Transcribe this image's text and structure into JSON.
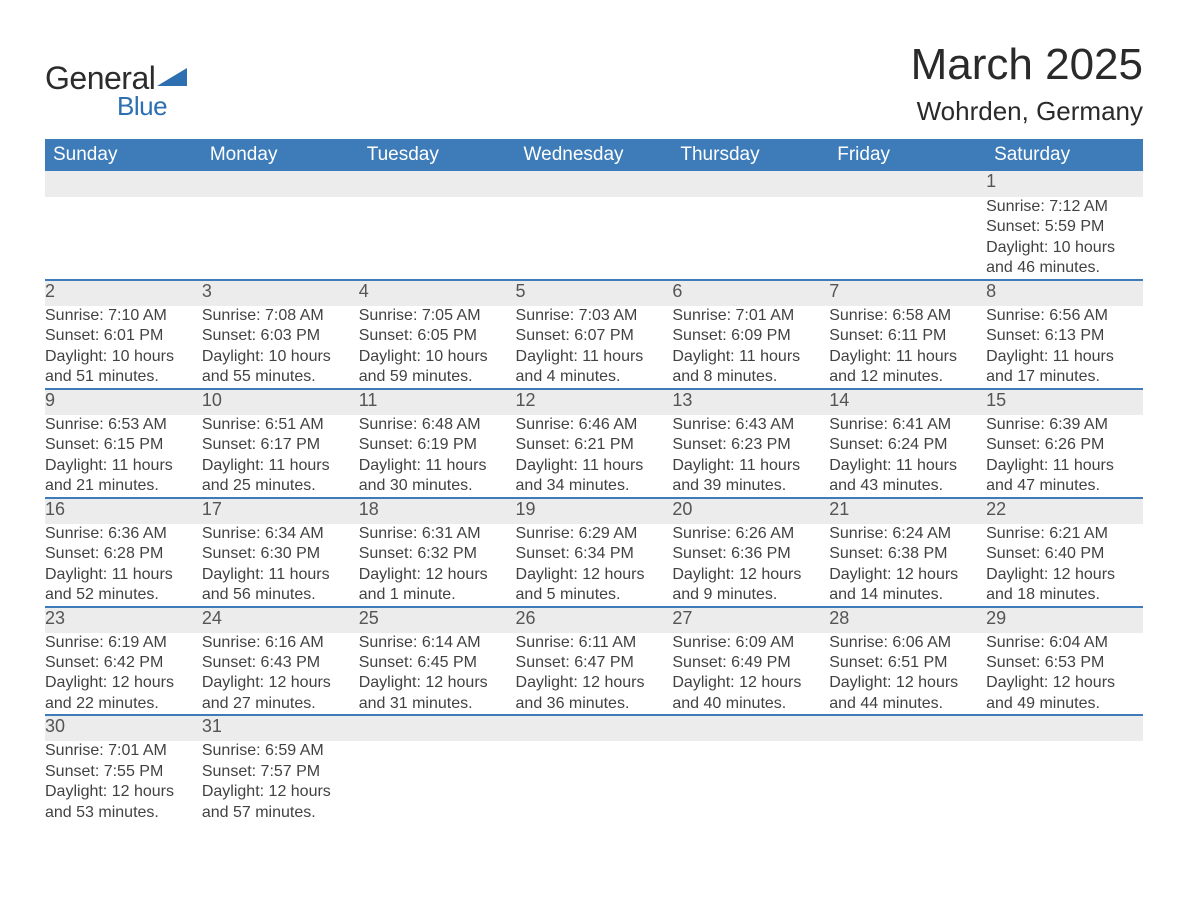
{
  "brand": {
    "general": "General",
    "blue": "Blue",
    "triangle_color": "#2d6fb0"
  },
  "header": {
    "month": "March 2025",
    "location": "Wohrden, Germany"
  },
  "colors": {
    "header_bg": "#3d7cb8",
    "header_text": "#ffffff",
    "daynum_bg": "#ececec",
    "row_border": "#3d7cb8",
    "body_text": "#424242"
  },
  "weekdays": [
    "Sunday",
    "Monday",
    "Tuesday",
    "Wednesday",
    "Thursday",
    "Friday",
    "Saturday"
  ],
  "weeks": [
    [
      null,
      null,
      null,
      null,
      null,
      null,
      {
        "n": "1",
        "sr": "Sunrise: 7:12 AM",
        "ss": "Sunset: 5:59 PM",
        "d1": "Daylight: 10 hours",
        "d2": "and 46 minutes."
      }
    ],
    [
      {
        "n": "2",
        "sr": "Sunrise: 7:10 AM",
        "ss": "Sunset: 6:01 PM",
        "d1": "Daylight: 10 hours",
        "d2": "and 51 minutes."
      },
      {
        "n": "3",
        "sr": "Sunrise: 7:08 AM",
        "ss": "Sunset: 6:03 PM",
        "d1": "Daylight: 10 hours",
        "d2": "and 55 minutes."
      },
      {
        "n": "4",
        "sr": "Sunrise: 7:05 AM",
        "ss": "Sunset: 6:05 PM",
        "d1": "Daylight: 10 hours",
        "d2": "and 59 minutes."
      },
      {
        "n": "5",
        "sr": "Sunrise: 7:03 AM",
        "ss": "Sunset: 6:07 PM",
        "d1": "Daylight: 11 hours",
        "d2": "and 4 minutes."
      },
      {
        "n": "6",
        "sr": "Sunrise: 7:01 AM",
        "ss": "Sunset: 6:09 PM",
        "d1": "Daylight: 11 hours",
        "d2": "and 8 minutes."
      },
      {
        "n": "7",
        "sr": "Sunrise: 6:58 AM",
        "ss": "Sunset: 6:11 PM",
        "d1": "Daylight: 11 hours",
        "d2": "and 12 minutes."
      },
      {
        "n": "8",
        "sr": "Sunrise: 6:56 AM",
        "ss": "Sunset: 6:13 PM",
        "d1": "Daylight: 11 hours",
        "d2": "and 17 minutes."
      }
    ],
    [
      {
        "n": "9",
        "sr": "Sunrise: 6:53 AM",
        "ss": "Sunset: 6:15 PM",
        "d1": "Daylight: 11 hours",
        "d2": "and 21 minutes."
      },
      {
        "n": "10",
        "sr": "Sunrise: 6:51 AM",
        "ss": "Sunset: 6:17 PM",
        "d1": "Daylight: 11 hours",
        "d2": "and 25 minutes."
      },
      {
        "n": "11",
        "sr": "Sunrise: 6:48 AM",
        "ss": "Sunset: 6:19 PM",
        "d1": "Daylight: 11 hours",
        "d2": "and 30 minutes."
      },
      {
        "n": "12",
        "sr": "Sunrise: 6:46 AM",
        "ss": "Sunset: 6:21 PM",
        "d1": "Daylight: 11 hours",
        "d2": "and 34 minutes."
      },
      {
        "n": "13",
        "sr": "Sunrise: 6:43 AM",
        "ss": "Sunset: 6:23 PM",
        "d1": "Daylight: 11 hours",
        "d2": "and 39 minutes."
      },
      {
        "n": "14",
        "sr": "Sunrise: 6:41 AM",
        "ss": "Sunset: 6:24 PM",
        "d1": "Daylight: 11 hours",
        "d2": "and 43 minutes."
      },
      {
        "n": "15",
        "sr": "Sunrise: 6:39 AM",
        "ss": "Sunset: 6:26 PM",
        "d1": "Daylight: 11 hours",
        "d2": "and 47 minutes."
      }
    ],
    [
      {
        "n": "16",
        "sr": "Sunrise: 6:36 AM",
        "ss": "Sunset: 6:28 PM",
        "d1": "Daylight: 11 hours",
        "d2": "and 52 minutes."
      },
      {
        "n": "17",
        "sr": "Sunrise: 6:34 AM",
        "ss": "Sunset: 6:30 PM",
        "d1": "Daylight: 11 hours",
        "d2": "and 56 minutes."
      },
      {
        "n": "18",
        "sr": "Sunrise: 6:31 AM",
        "ss": "Sunset: 6:32 PM",
        "d1": "Daylight: 12 hours",
        "d2": "and 1 minute."
      },
      {
        "n": "19",
        "sr": "Sunrise: 6:29 AM",
        "ss": "Sunset: 6:34 PM",
        "d1": "Daylight: 12 hours",
        "d2": "and 5 minutes."
      },
      {
        "n": "20",
        "sr": "Sunrise: 6:26 AM",
        "ss": "Sunset: 6:36 PM",
        "d1": "Daylight: 12 hours",
        "d2": "and 9 minutes."
      },
      {
        "n": "21",
        "sr": "Sunrise: 6:24 AM",
        "ss": "Sunset: 6:38 PM",
        "d1": "Daylight: 12 hours",
        "d2": "and 14 minutes."
      },
      {
        "n": "22",
        "sr": "Sunrise: 6:21 AM",
        "ss": "Sunset: 6:40 PM",
        "d1": "Daylight: 12 hours",
        "d2": "and 18 minutes."
      }
    ],
    [
      {
        "n": "23",
        "sr": "Sunrise: 6:19 AM",
        "ss": "Sunset: 6:42 PM",
        "d1": "Daylight: 12 hours",
        "d2": "and 22 minutes."
      },
      {
        "n": "24",
        "sr": "Sunrise: 6:16 AM",
        "ss": "Sunset: 6:43 PM",
        "d1": "Daylight: 12 hours",
        "d2": "and 27 minutes."
      },
      {
        "n": "25",
        "sr": "Sunrise: 6:14 AM",
        "ss": "Sunset: 6:45 PM",
        "d1": "Daylight: 12 hours",
        "d2": "and 31 minutes."
      },
      {
        "n": "26",
        "sr": "Sunrise: 6:11 AM",
        "ss": "Sunset: 6:47 PM",
        "d1": "Daylight: 12 hours",
        "d2": "and 36 minutes."
      },
      {
        "n": "27",
        "sr": "Sunrise: 6:09 AM",
        "ss": "Sunset: 6:49 PM",
        "d1": "Daylight: 12 hours",
        "d2": "and 40 minutes."
      },
      {
        "n": "28",
        "sr": "Sunrise: 6:06 AM",
        "ss": "Sunset: 6:51 PM",
        "d1": "Daylight: 12 hours",
        "d2": "and 44 minutes."
      },
      {
        "n": "29",
        "sr": "Sunrise: 6:04 AM",
        "ss": "Sunset: 6:53 PM",
        "d1": "Daylight: 12 hours",
        "d2": "and 49 minutes."
      }
    ],
    [
      {
        "n": "30",
        "sr": "Sunrise: 7:01 AM",
        "ss": "Sunset: 7:55 PM",
        "d1": "Daylight: 12 hours",
        "d2": "and 53 minutes."
      },
      {
        "n": "31",
        "sr": "Sunrise: 6:59 AM",
        "ss": "Sunset: 7:57 PM",
        "d1": "Daylight: 12 hours",
        "d2": "and 57 minutes."
      },
      null,
      null,
      null,
      null,
      null
    ]
  ]
}
